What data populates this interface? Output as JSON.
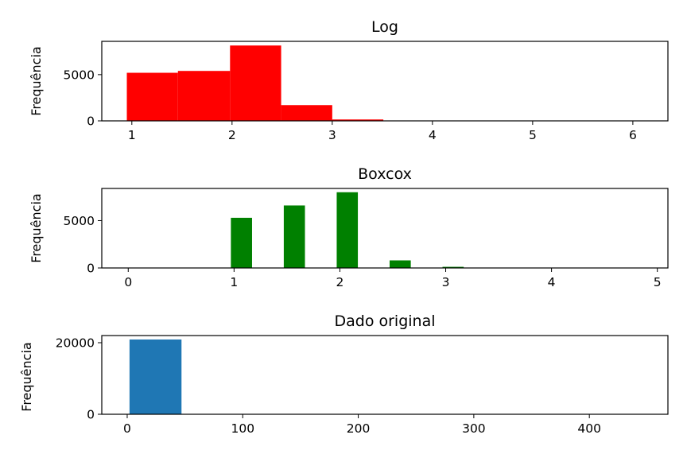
{
  "chart_data": [
    {
      "type": "bar",
      "title": "Log",
      "xlabel": "",
      "ylabel": "Frequência",
      "color": "#ff0000",
      "xlim": [
        0.7,
        6.35
      ],
      "ylim": [
        0,
        8600
      ],
      "xticks": [
        1,
        2,
        3,
        4,
        5,
        6
      ],
      "yticks": [
        0,
        5000
      ],
      "bins": [
        {
          "x0": 0.95,
          "x1": 1.46,
          "value": 5200
        },
        {
          "x0": 1.46,
          "x1": 1.98,
          "value": 5400
        },
        {
          "x0": 1.98,
          "x1": 2.49,
          "value": 8150
        },
        {
          "x0": 2.49,
          "x1": 3.0,
          "value": 1700
        },
        {
          "x0": 3.0,
          "x1": 3.51,
          "value": 150
        },
        {
          "x0": 3.51,
          "x1": 4.03,
          "value": 40
        },
        {
          "x0": 4.03,
          "x1": 4.54,
          "value": 20
        },
        {
          "x0": 4.54,
          "x1": 5.05,
          "value": 5
        },
        {
          "x0": 5.05,
          "x1": 5.57,
          "value": 2
        },
        {
          "x0": 5.57,
          "x1": 6.08,
          "value": 1
        }
      ]
    },
    {
      "type": "bar",
      "title": "Boxcox",
      "xlabel": "",
      "ylabel": "Frequência",
      "color": "#008000",
      "xlim": [
        -0.25,
        5.1
      ],
      "ylim": [
        0,
        8400
      ],
      "xticks": [
        0,
        1,
        2,
        3,
        4,
        5
      ],
      "yticks": [
        0,
        5000
      ],
      "bins": [
        {
          "x0": 0.97,
          "x1": 1.17,
          "value": 5300
        },
        {
          "x0": 1.47,
          "x1": 1.67,
          "value": 6600
        },
        {
          "x0": 1.97,
          "x1": 2.17,
          "value": 8000
        },
        {
          "x0": 2.47,
          "x1": 2.67,
          "value": 800
        },
        {
          "x0": 2.97,
          "x1": 3.17,
          "value": 120
        },
        {
          "x0": 3.47,
          "x1": 3.67,
          "value": 30
        },
        {
          "x0": 3.97,
          "x1": 4.17,
          "value": 10
        },
        {
          "x0": 4.47,
          "x1": 4.67,
          "value": 3
        }
      ]
    },
    {
      "type": "bar",
      "title": "Dado original",
      "xlabel": "",
      "ylabel": "Frequência",
      "color": "#1f77b4",
      "xlim": [
        -22,
        468
      ],
      "ylim": [
        0,
        22000
      ],
      "xticks": [
        0,
        100,
        200,
        300,
        400
      ],
      "yticks": [
        0,
        20000
      ],
      "bins": [
        {
          "x0": 2,
          "x1": 47,
          "value": 20900
        },
        {
          "x0": 47,
          "x1": 92,
          "value": 30
        },
        {
          "x0": 92,
          "x1": 137,
          "value": 5
        },
        {
          "x0": 137,
          "x1": 182,
          "value": 2
        },
        {
          "x0": 182,
          "x1": 227,
          "value": 1
        },
        {
          "x0": 227,
          "x1": 272,
          "value": 1
        },
        {
          "x0": 272,
          "x1": 317,
          "value": 1
        },
        {
          "x0": 317,
          "x1": 362,
          "value": 1
        },
        {
          "x0": 362,
          "x1": 407,
          "value": 0
        },
        {
          "x0": 407,
          "x1": 452,
          "value": 1
        }
      ]
    }
  ]
}
